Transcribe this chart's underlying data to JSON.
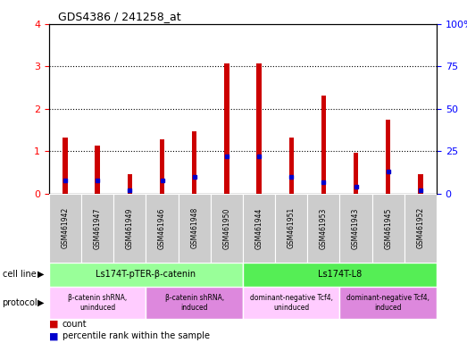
{
  "title": "GDS4386 / 241258_at",
  "samples": [
    "GSM461942",
    "GSM461947",
    "GSM461949",
    "GSM461946",
    "GSM461948",
    "GSM461950",
    "GSM461944",
    "GSM461951",
    "GSM461953",
    "GSM461943",
    "GSM461945",
    "GSM461952"
  ],
  "count_values": [
    1.32,
    1.13,
    0.47,
    1.28,
    1.48,
    3.08,
    3.08,
    1.32,
    2.32,
    0.97,
    1.74,
    0.47
  ],
  "percentile_values_pct": [
    8,
    8,
    2,
    8,
    10,
    22,
    22,
    10,
    7,
    4,
    13,
    2
  ],
  "bar_color": "#cc0000",
  "dot_color": "#0000cc",
  "bar_width": 0.15,
  "ylim_left": [
    0,
    4
  ],
  "ylim_right": [
    0,
    100
  ],
  "yticks_left": [
    0,
    1,
    2,
    3,
    4
  ],
  "yticks_right": [
    0,
    25,
    50,
    75,
    100
  ],
  "cell_line_groups": [
    {
      "label": "Ls174T-pTER-β-catenin",
      "start": 0,
      "end": 6,
      "color": "#99ff99"
    },
    {
      "label": "Ls174T-L8",
      "start": 6,
      "end": 12,
      "color": "#55ee55"
    }
  ],
  "protocol_groups": [
    {
      "label": "β-catenin shRNA,\nuninduced",
      "start": 0,
      "end": 3,
      "color": "#ffccff"
    },
    {
      "label": "β-catenin shRNA,\ninduced",
      "start": 3,
      "end": 6,
      "color": "#dd88dd"
    },
    {
      "label": "dominant-negative Tcf4,\nuninduced",
      "start": 6,
      "end": 9,
      "color": "#ffccff"
    },
    {
      "label": "dominant-negative Tcf4,\ninduced",
      "start": 9,
      "end": 12,
      "color": "#dd88dd"
    }
  ],
  "legend_count_label": "count",
  "legend_percentile_label": "percentile rank within the sample",
  "cell_line_label": "cell line",
  "protocol_label": "protocol",
  "background_color": "#ffffff",
  "plot_bg_color": "#ffffff",
  "sample_area_color": "#cccccc"
}
